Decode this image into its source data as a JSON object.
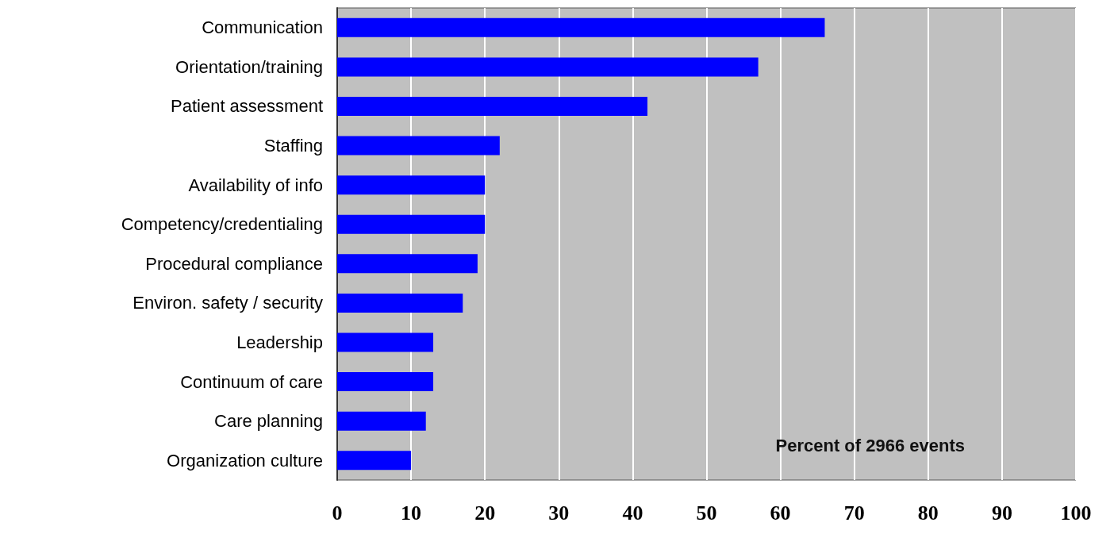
{
  "chart_data": {
    "type": "bar",
    "orientation": "horizontal",
    "categories": [
      "Communication",
      "Orientation/training",
      "Patient assessment",
      "Staffing",
      "Availability of info",
      "Competency/credentialing",
      "Procedural compliance",
      "Environ. safety / security",
      "Leadership",
      "Continuum of care",
      "Care planning",
      "Organization culture"
    ],
    "values": [
      66,
      57,
      42,
      22,
      20,
      20,
      19,
      17,
      13,
      13,
      12,
      10
    ],
    "color": "#0000ff",
    "xlim": [
      0,
      100
    ],
    "xticks": [
      0,
      10,
      20,
      30,
      40,
      50,
      60,
      70,
      80,
      90,
      100
    ],
    "grid": "x",
    "annotations": [
      "Percent of 2966 events"
    ]
  }
}
